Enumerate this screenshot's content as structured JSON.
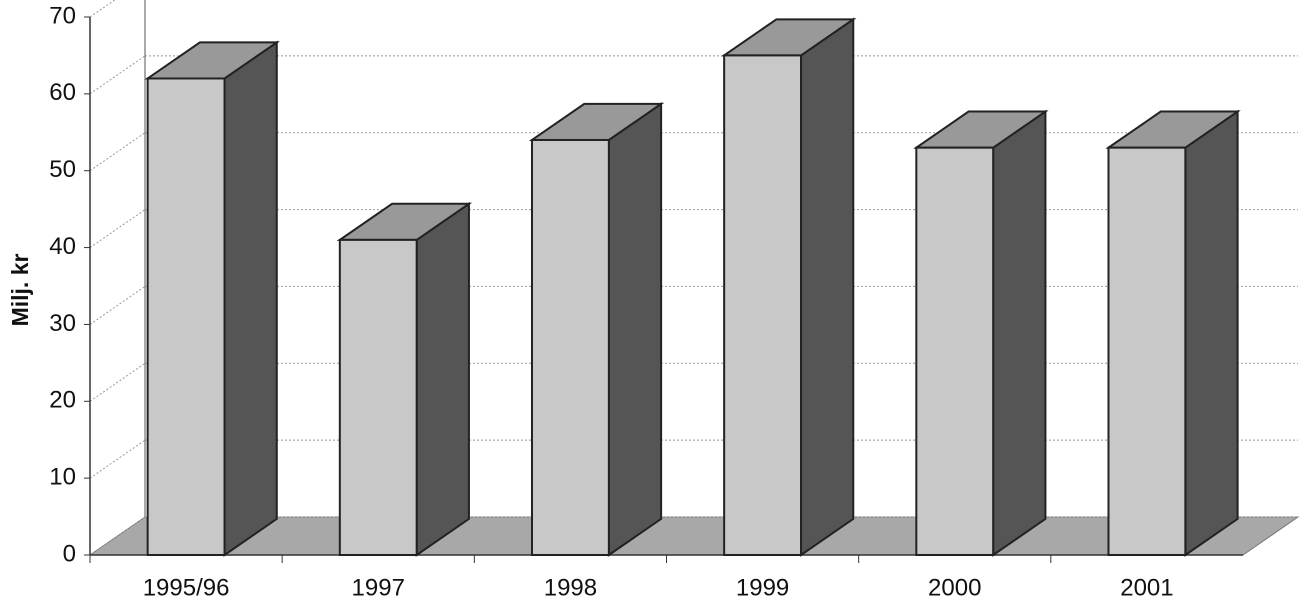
{
  "chart_data": {
    "type": "bar3d",
    "y_label": "Milj. kr",
    "categories": [
      "1995/96",
      "1997",
      "1998",
      "1999",
      "2000",
      "2001"
    ],
    "values": [
      62,
      41,
      54,
      65,
      53,
      53
    ],
    "color": "#c8c8c8",
    "ylim": [
      0,
      70
    ],
    "yticks": [
      0,
      10,
      20,
      30,
      40,
      50,
      60,
      70
    ],
    "grid": true
  }
}
